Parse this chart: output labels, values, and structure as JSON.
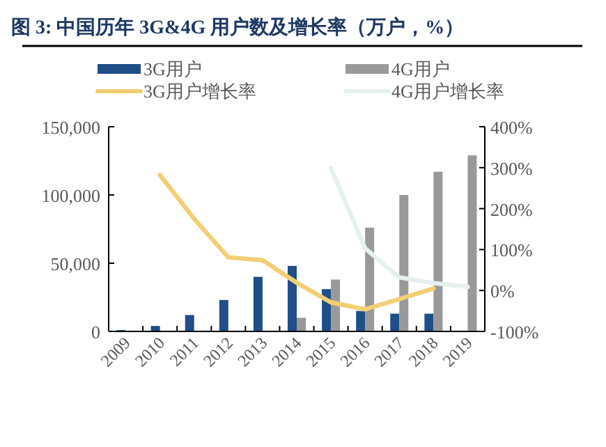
{
  "chart_data": {
    "type": "bar",
    "title": "图 3: 中国历年 3G&4G 用户数及增长率（万户，%）",
    "categories": [
      "2009",
      "2010",
      "2011",
      "2012",
      "2013",
      "2014",
      "2015",
      "2016",
      "2017",
      "2018",
      "2019"
    ],
    "series": [
      {
        "name": "3G用户",
        "color": "#1f4e89",
        "values": [
          1000,
          4000,
          12000,
          23000,
          40000,
          48000,
          31000,
          15000,
          13000,
          13000,
          null
        ]
      },
      {
        "name": "4G用户",
        "color": "#999999",
        "values": [
          null,
          null,
          null,
          null,
          null,
          10000,
          38000,
          76000,
          100000,
          117000,
          129000
        ]
      },
      {
        "name": "3G用户增长率",
        "type": "line",
        "axis": "y2",
        "color": "#f2cf75",
        "values": [
          null,
          282,
          175,
          81,
          74,
          19,
          -29,
          -46,
          -21,
          5,
          null
        ]
      },
      {
        "name": "4G用户增长率",
        "type": "line",
        "axis": "y2",
        "color": "#e6f0ee",
        "values": [
          null,
          null,
          null,
          null,
          null,
          null,
          299,
          103,
          32,
          18,
          9
        ]
      }
    ],
    "ylim": [
      0,
      150000
    ],
    "yticks": [
      0,
      {
        "value": 50000,
        "label": "50,000"
      },
      {
        "value": 100000,
        "label": "100,000"
      },
      {
        "value": 150000,
        "label": "150,000"
      }
    ],
    "y2lim": [
      -100,
      400
    ],
    "y2ticks": [
      {
        "value": -100,
        "label": "-100%"
      },
      {
        "value": 0,
        "label": "0%"
      },
      {
        "value": 100,
        "label": "100%"
      },
      {
        "value": 200,
        "label": "200%"
      },
      {
        "value": 300,
        "label": "300%"
      },
      {
        "value": 400,
        "label": "400%"
      }
    ],
    "legend": "top",
    "grid": false
  }
}
